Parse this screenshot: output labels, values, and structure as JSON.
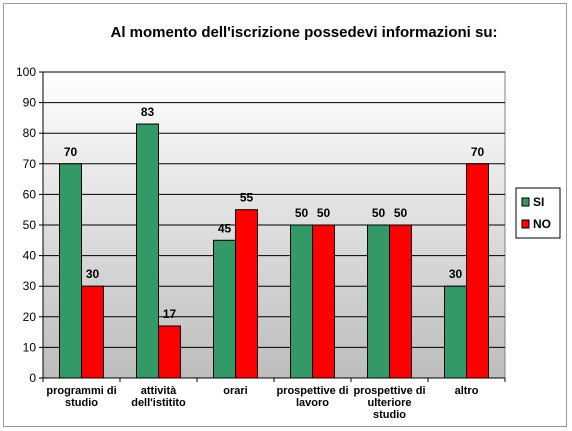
{
  "chart_data": {
    "type": "bar",
    "title": "Al momento dell'iscrizione possedevi  informazioni su:",
    "categories": [
      [
        "programmi di",
        "studio"
      ],
      [
        "attività",
        "dell'istitito"
      ],
      [
        "orari"
      ],
      [
        "prospettive  di",
        "lavoro"
      ],
      [
        "prospettive  di",
        "ulteriore",
        "studio"
      ],
      [
        "altro"
      ]
    ],
    "series": [
      {
        "name": "SI",
        "color": "#339966",
        "values": [
          70,
          83,
          45,
          50,
          50,
          30
        ]
      },
      {
        "name": "NO",
        "color": "#ff0000",
        "values": [
          30,
          17,
          55,
          50,
          50,
          70
        ]
      }
    ],
    "ylim": [
      0,
      100
    ],
    "yticks": [
      0,
      10,
      20,
      30,
      40,
      50,
      60,
      70,
      80,
      90,
      100
    ],
    "grid": true,
    "legend": "right",
    "plot_background": "gradient gray"
  }
}
